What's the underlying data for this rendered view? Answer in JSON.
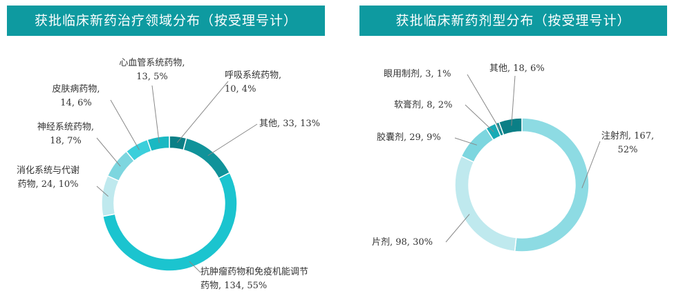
{
  "chart_data": [
    {
      "type": "donut",
      "title": "获批临床新药治疗领域分布（按受理号计）",
      "labels": [
        "呼吸系统药物, 10, 4%",
        "其他, 33, 13%",
        "抗肿瘤药物和免疫机能调节药物, 134, 55%",
        "消化系统与代谢药物, 24, 10%",
        "神经系统药物, 18, 7%",
        "皮肤病药物, 14, 6%",
        "心血管系统药物, 13, 5%"
      ],
      "values": [
        10,
        33,
        134,
        24,
        18,
        14,
        13
      ],
      "colors": [
        "#0b7f86",
        "#10939a",
        "#1bc4cf",
        "#bfe9ee",
        "#7dd6df",
        "#3ccfdb",
        "#1ab8c2"
      ]
    },
    {
      "type": "donut",
      "title": "获批临床新药剂型分布（按受理号计）",
      "labels": [
        "注射剂, 167, 52%",
        "片剂, 98, 30%",
        "胶囊剂, 29, 9%",
        "软膏剂, 8, 2%",
        "眼用制剂, 3, 1%",
        "其他, 18, 6%"
      ],
      "values": [
        167,
        98,
        29,
        8,
        3,
        18
      ],
      "colors": [
        "#8ddbe3",
        "#bfe9ee",
        "#7dd6df",
        "#19aab5",
        "#0e8b93",
        "#0b7f86"
      ]
    }
  ]
}
